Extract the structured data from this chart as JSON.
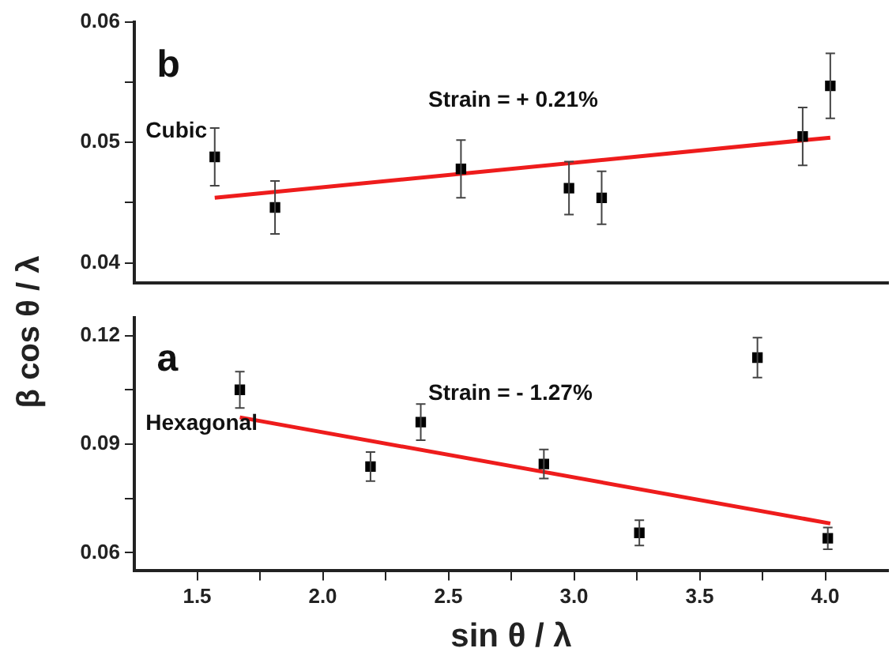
{
  "chart_data": [
    {
      "type": "scatter",
      "ylabel": "β cos θ / λ",
      "annotations": [
        "b",
        "Cubic",
        "Strain = + 0.21%"
      ],
      "xlim": [
        1.25,
        4.25
      ],
      "ylim": [
        0.0383,
        0.06
      ],
      "yticks": [
        0.04,
        {
          "value": 0.045,
          "label": null
        },
        0.05,
        {
          "value": 0.055,
          "label": null
        },
        0.06
      ],
      "tick_labels": "y",
      "series": [
        {
          "marker": "square",
          "color": "#000000",
          "x": [
            1.57,
            1.81,
            2.55,
            2.98,
            3.11,
            3.91,
            4.02
          ],
          "values": [
            0.0488,
            0.0446,
            0.0478,
            0.0462,
            0.0454,
            0.0505,
            0.0547
          ],
          "errors": [
            0.0024,
            0.0022,
            0.0024,
            0.0022,
            0.0022,
            0.0024,
            0.0027
          ]
        },
        {
          "type": "line",
          "marker": "none",
          "color": "#ee1c1c",
          "x": [
            1.57,
            4.02
          ],
          "values": [
            0.0454,
            0.0504
          ]
        }
      ]
    },
    {
      "type": "scatter",
      "xlabel": "sin θ / λ",
      "annotations": [
        "a",
        "Hexagonal",
        "Strain = - 1.27%"
      ],
      "xlim": [
        1.25,
        4.25
      ],
      "ylim": [
        0.055,
        0.125
      ],
      "xticks": [
        {
          "value": 1.5,
          "label": "1.5"
        },
        {
          "value": 1.75,
          "label": null
        },
        {
          "value": 2,
          "label": "2.0"
        },
        {
          "value": 2.25,
          "label": null
        },
        {
          "value": 2.5,
          "label": "2.5"
        },
        {
          "value": 2.75,
          "label": null
        },
        {
          "value": 3,
          "label": "3.0"
        },
        {
          "value": 3.25,
          "label": null
        },
        {
          "value": 3.5,
          "label": "3.5"
        },
        {
          "value": 3.75,
          "label": null
        },
        {
          "value": 4,
          "label": "4.0"
        }
      ],
      "yticks": [
        0.06,
        {
          "value": 0.075,
          "label": null
        },
        0.09,
        {
          "value": 0.105,
          "label": null
        },
        0.12
      ],
      "series": [
        {
          "marker": "square",
          "color": "#000000",
          "x": [
            1.67,
            2.19,
            2.39,
            2.88,
            3.26,
            3.73,
            4.01
          ],
          "values": [
            0.105,
            0.0838,
            0.0961,
            0.0845,
            0.0655,
            0.1139,
            0.064
          ],
          "errors": [
            0.005,
            0.004,
            0.005,
            0.004,
            0.0035,
            0.0055,
            0.003
          ]
        },
        {
          "type": "line",
          "marker": "none",
          "color": "#ee1c1c",
          "x": [
            1.67,
            4.02
          ],
          "values": [
            0.0974,
            0.0681
          ]
        }
      ]
    }
  ]
}
